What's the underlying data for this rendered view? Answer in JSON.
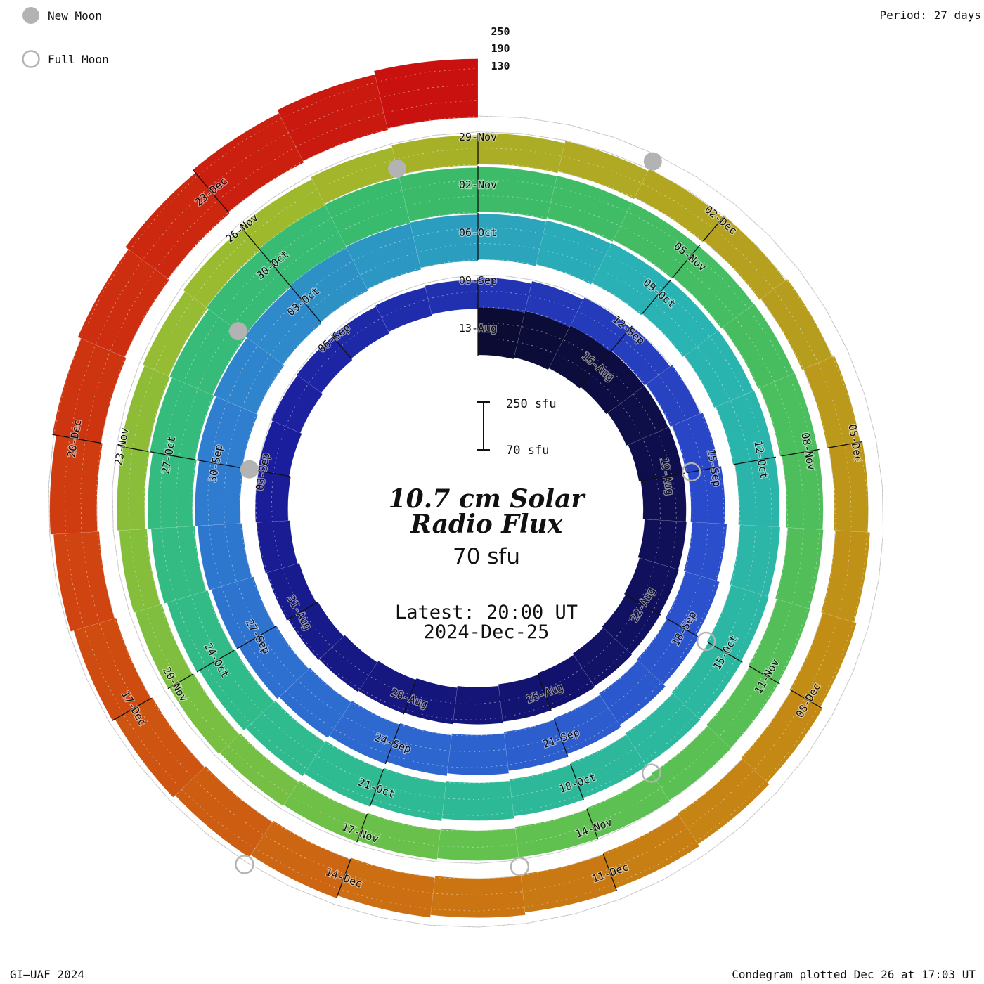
{
  "legend": {
    "new_moon": "New Moon",
    "full_moon": "Full Moon"
  },
  "header": {
    "period": "Period: 27 days"
  },
  "center": {
    "title_line1": "10.7 cm Solar",
    "title_line2": "Radio Flux",
    "baseline_label": "70 sfu",
    "latest_line1": "Latest: 20:00 UT",
    "latest_line2": "2024-Dec-25"
  },
  "footer": {
    "credit": "GI–UAF 2024",
    "plotted": "Condegram plotted Dec 26 at 17:03 UT"
  },
  "chart_data": {
    "type": "condegram_spiral_bar",
    "title": "10.7 cm Solar Radio Flux",
    "period_days": 27,
    "start_date": "2024-08-13",
    "end_date": "2024-12-25",
    "baseline_sfu": 70,
    "radial_gridlines_sfu": [
      130,
      190,
      250
    ],
    "scale_bar": {
      "top_label": "250 sfu",
      "bottom_label": "70 sfu",
      "min_sfu": 70,
      "max_sfu": 250
    },
    "date_label_step_days": 3,
    "date_labels": [
      "13-Aug",
      "16-Aug",
      "19-Aug",
      "22-Aug",
      "25-Aug",
      "28-Aug",
      "31-Aug",
      "03-Sep",
      "06-Sep",
      "09-Sep",
      "12-Sep",
      "15-Sep",
      "18-Sep",
      "21-Sep",
      "24-Sep",
      "27-Sep",
      "30-Sep",
      "03-Oct",
      "06-Oct",
      "09-Oct",
      "12-Oct",
      "15-Oct",
      "18-Oct",
      "21-Oct",
      "24-Oct",
      "27-Oct",
      "30-Oct",
      "02-Nov",
      "05-Nov",
      "08-Nov",
      "11-Nov",
      "14-Nov",
      "17-Nov",
      "20-Nov",
      "23-Nov",
      "26-Nov",
      "29-Nov",
      "02-Dec",
      "05-Dec",
      "08-Dec",
      "11-Dec",
      "14-Dec",
      "17-Dec",
      "20-Dec",
      "23-Dec"
    ],
    "daily_flux_sfu": [
      268,
      262,
      255,
      248,
      242,
      238,
      232,
      228,
      224,
      220,
      218,
      215,
      212,
      210,
      208,
      205,
      203,
      200,
      198,
      196,
      193,
      190,
      188,
      185,
      183,
      181,
      180,
      182,
      185,
      188,
      190,
      193,
      196,
      198,
      200,
      204,
      208,
      212,
      215,
      218,
      221,
      224,
      227,
      230,
      233,
      236,
      238,
      240,
      242,
      245,
      248,
      250,
      248,
      245,
      242,
      240,
      237,
      234,
      230,
      227,
      224,
      221,
      218,
      215,
      213,
      211,
      210,
      212,
      215,
      218,
      222,
      226,
      230,
      234,
      238,
      242,
      245,
      248,
      250,
      246,
      242,
      238,
      233,
      228,
      223,
      218,
      213,
      208,
      204,
      200,
      196,
      192,
      189,
      186,
      183,
      181,
      179,
      177,
      176,
      175,
      174,
      174,
      175,
      176,
      178,
      180,
      182,
      184,
      186,
      188,
      190,
      192,
      194,
      196,
      198,
      200,
      203,
      206,
      209,
      212,
      215,
      218,
      221,
      225,
      229,
      233,
      237,
      242,
      247,
      255,
      262,
      270,
      278,
      285,
      292
    ],
    "new_moon_dates": [
      "03-Sep",
      "02-Oct",
      "01-Nov",
      "01-Dec"
    ],
    "new_moon_day_offsets": [
      21,
      50,
      80,
      110
    ],
    "full_moon_dates": [
      "19-Aug",
      "18-Sep",
      "17-Oct",
      "15-Nov",
      "15-Dec"
    ],
    "full_moon_day_offsets": [
      6,
      36,
      65,
      94,
      124
    ],
    "color_stops": [
      [
        0.0,
        "#0b0b33"
      ],
      [
        0.08,
        "#12126b"
      ],
      [
        0.16,
        "#1b1f9e"
      ],
      [
        0.25,
        "#2a4ccc"
      ],
      [
        0.36,
        "#2f7fd0"
      ],
      [
        0.42,
        "#29b3b4"
      ],
      [
        0.52,
        "#2fbb8f"
      ],
      [
        0.6,
        "#3bbb69"
      ],
      [
        0.7,
        "#62c14e"
      ],
      [
        0.78,
        "#9dbb2e"
      ],
      [
        0.82,
        "#b2a621"
      ],
      [
        0.87,
        "#c38b14"
      ],
      [
        0.91,
        "#cc6f12"
      ],
      [
        0.95,
        "#cf4110"
      ],
      [
        1.0,
        "#c9120f"
      ]
    ],
    "moon_marker_color": "#b3b3b3",
    "gridline_color": "#c4c4c4",
    "accent_text_color": "#e8423e"
  }
}
